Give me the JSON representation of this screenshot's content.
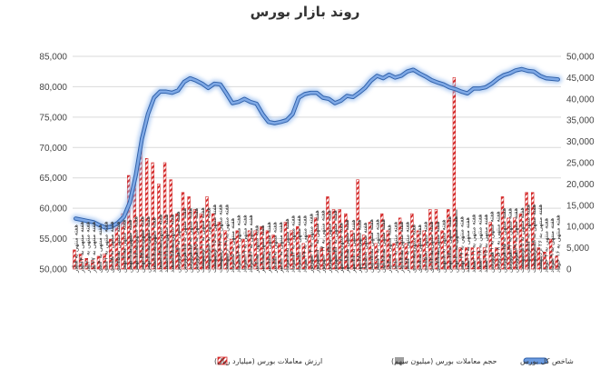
{
  "title": "روند بازار بورس",
  "chart_data": {
    "type": "bar",
    "title": "روند بازار بورس",
    "ylim_left": [
      50000,
      85000
    ],
    "yticks_left": [
      "50,000",
      "55,000",
      "60,000",
      "65,000",
      "70,000",
      "75,000",
      "80,000",
      "85,000"
    ],
    "ylim_right": [
      0,
      50000
    ],
    "yticks_right": [
      "0",
      "5,000",
      "10,000",
      "15,000",
      "20,000",
      "25,000",
      "30,000",
      "35,000",
      "40,000",
      "45,000",
      "50,000"
    ],
    "grid": true,
    "legend_position": "bottom",
    "categories": [
      "هفته منتهی به ۶ آذر",
      "هفته منتهی به ۱۳ آذر",
      "هفته منتهی به ۲۰ آذر",
      "هفته منتهی به ۲۷ آذر",
      "هفته منتهی به ۴ دی",
      "هفته منتهی به ۱۱ دی",
      "هفته منتهی به ۱۸ دی",
      "هفته منتهی به ۲۵ دی",
      "هفته منتهی به ۲ بهمن",
      "هفته منتهی به ۹ بهمن",
      "هفته منتهی به ۱۶ بهمن",
      "هفته منتهی به ۲۳ بهمن",
      "هفته منتهی به ۳۰ بهمن",
      "هفته منتهی به ۷ اسفند",
      "هفته منتهی به ۱۴ اسفند",
      "هفته منتهی به ۲۱ اسفند",
      "هفته منتهی به ۲۸ اسفند",
      "هفته منتهی به ۴ فروردین",
      "هفته منتهی به ۱۱ فروردین",
      "هفته منتهی به ۱۸ فروردین",
      "هفته منتهی به ۲۵ فروردین",
      "هفته منتهی به ۱ اردیبهشت",
      "هفته منتهی به ۸ اردیبهشت",
      "هفته منتهی به ۱۵ اردیبهشت",
      "هفته منتهی به ۲۲ اردیبهشت",
      "هفته منتهی به ۲۹ اردیبهشت",
      "هفته منتهی به ۵ خرداد",
      "هفته منتهی به ۱۲ خرداد",
      "هفته منتهی به ۱۹ خرداد",
      "هفته منتهی به ۲۶ خرداد",
      "هفته منتهی به ۲ تیر",
      "هفته منتهی به ۹ تیر",
      "هفته منتهی به ۱۶ تیر",
      "هفته منتهی به ۲۳ تیر",
      "هفته منتهی به ۳۰ تیر",
      "هفته منتهی به ۶ مرداد",
      "هفته منتهی به ۱۳ مرداد",
      "هفته منتهی به ۲۰ مرداد",
      "هفته منتهی به ۲۷ مرداد",
      "هفته منتهی به ۳ شهریور",
      "هفته منتهی به ۱۰ شهریور",
      "هفته منتهی به ۱۷ شهریور",
      "هفته منتهی به ۲۴ شهریور",
      "هفته منتهی به ۳۱ شهریور",
      "هفته منتهی به ۷ مهر",
      "هفته منتهی به ۱۴ مهر",
      "هفته منتهی به ۲۱ مهر",
      "هفته منتهی به ۲۸ مهر",
      "هفته منتهی به ۵ آبان",
      "هفته منتهی به ۱۲ آبان",
      "هفته منتهی به ۱۹ آبان",
      "هفته منتهی به ۲۶ آبان",
      "هفته منتهی به ۳ آذر",
      "هفته منتهی به ۱۰ آذر",
      "هفته منتهی به ۱۷ آذر",
      "هفته منتهی به ۲۴ آذر",
      "هفته منتهی به ۱ دی",
      "هفته منتهی به ۸ دی",
      "هفته منتهی به ۱۵ دی",
      "هفته منتهی به ۲۲ دی",
      "هفته منتهی به ۲۹ دی",
      "هفته منتهی به ۶ بهمن",
      "هفته منتهی به ۱۳ بهمن",
      "هفته منتهی به ۲۰ بهمن",
      "هفته منتهی به ۲۷ بهمن",
      "هفته منتهی به ۴ اسفند",
      "هفته منتهی به ۱۱ اسفند",
      "هفته منتهی به ۱۸ اسفند",
      "هفته منتهی به ۲۵ اسفند",
      "هفته منتهی به ۱ فروردین",
      "هفته منتهی به ۸ فروردین",
      "هفته منتهی به ۱۵ فروردین",
      "هفته منتهی به ۲۲ فروردین",
      "هفته منتهی به ۲۹ فروردین",
      "هفته منتهی به ۵ اردیبهشت",
      "هفته منتهی به ۱۲ اردیبهشت",
      "هفته منتهی به ۱۹ اردیبهشت",
      "هفته منتهی به ۲۶ اردیبهشت",
      "هفته منتهی به ۲ خرداد",
      "هفته منتهی به ۹ خرداد",
      "هفته منتهی به ۱۶ خرداد"
    ],
    "series": [
      {
        "name": "ارزش معاملات بورس (میلیارد ریال)",
        "kind": "bar",
        "axis": "right",
        "color": "#d42a2a",
        "pattern": "striped",
        "values": [
          4500,
          3500,
          2500,
          2000,
          3000,
          3500,
          7000,
          11000,
          13000,
          22000,
          20000,
          28000,
          26000,
          25000,
          20000,
          25000,
          21000,
          13000,
          18000,
          17000,
          14000,
          13000,
          17000,
          13000,
          11000,
          9000,
          7000,
          9000,
          7000,
          9000,
          9000,
          10000,
          9000,
          8000,
          6000,
          11000,
          9000,
          10000,
          6000,
          8000,
          12000,
          5000,
          17000,
          14000,
          14000,
          13000,
          9000,
          21000,
          8000,
          11000,
          6000,
          13000,
          9000,
          6000,
          12000,
          6000,
          13000,
          9000,
          9000,
          14000,
          14000,
          9000,
          14000,
          45000,
          5000,
          5000,
          5000,
          5000,
          5000,
          11000,
          5000,
          17000,
          12000,
          12000,
          13000,
          18000,
          18000,
          5000,
          4000,
          7000,
          3000
        ]
      },
      {
        "name": "حجم معاملات بورس (میلیون سهم)",
        "kind": "bar",
        "axis": "right",
        "color": "#9e9e9e",
        "values": [
          2000,
          1500,
          1200,
          1000,
          1500,
          1800,
          3000,
          4000,
          5000,
          8000,
          7000,
          9000,
          8500,
          8000,
          7000,
          8000,
          7000,
          5000,
          6000,
          5500,
          5000,
          4500,
          5500,
          4500,
          4000,
          3500,
          3000,
          3500,
          3000,
          3500,
          3500,
          4000,
          3500,
          3000,
          2500,
          4000,
          3500,
          4000,
          2500,
          3000,
          4500,
          2000,
          6000,
          5000,
          5000,
          4500,
          3500,
          7000,
          3000,
          4000,
          2500,
          4500,
          3500,
          2500,
          4500,
          2500,
          4500,
          3500,
          3500,
          5000,
          5000,
          3500,
          5000,
          14000,
          2000,
          2000,
          2000,
          2000,
          2000,
          4000,
          2000,
          6000,
          4500,
          4500,
          5000,
          6500,
          6500,
          2000,
          1500,
          2500,
          1200
        ]
      },
      {
        "name": "شاخص کل بورس",
        "kind": "line",
        "axis": "left",
        "color": "#5b8ed6",
        "values": [
          58300,
          58100,
          57900,
          57700,
          57200,
          56800,
          57000,
          57600,
          58600,
          61000,
          65500,
          71500,
          75500,
          78200,
          79200,
          79200,
          79000,
          79400,
          80800,
          81400,
          81000,
          80500,
          79800,
          80500,
          80400,
          78900,
          77300,
          77500,
          78000,
          77500,
          77200,
          75500,
          74200,
          74000,
          74200,
          74500,
          75500,
          78200,
          78800,
          79000,
          79000,
          78200,
          78000,
          77300,
          77700,
          78500,
          78300,
          79000,
          79800,
          81000,
          81800,
          81400,
          82000,
          81500,
          81800,
          82500,
          82800,
          82200,
          81700,
          81100,
          80700,
          80400,
          79900,
          79600,
          79200,
          78900,
          79700,
          79700,
          79900,
          80500,
          81300,
          81900,
          82200,
          82700,
          82900,
          82600,
          82500,
          81800,
          81400,
          81300,
          81200
        ]
      }
    ]
  },
  "legend": {
    "items": [
      {
        "label": "شاخص کل بورس"
      },
      {
        "label": "حجم معاملات بورس (میلیون سهم)"
      },
      {
        "label": "ارزش معاملات بورس (میلیارد ریال)"
      }
    ]
  }
}
